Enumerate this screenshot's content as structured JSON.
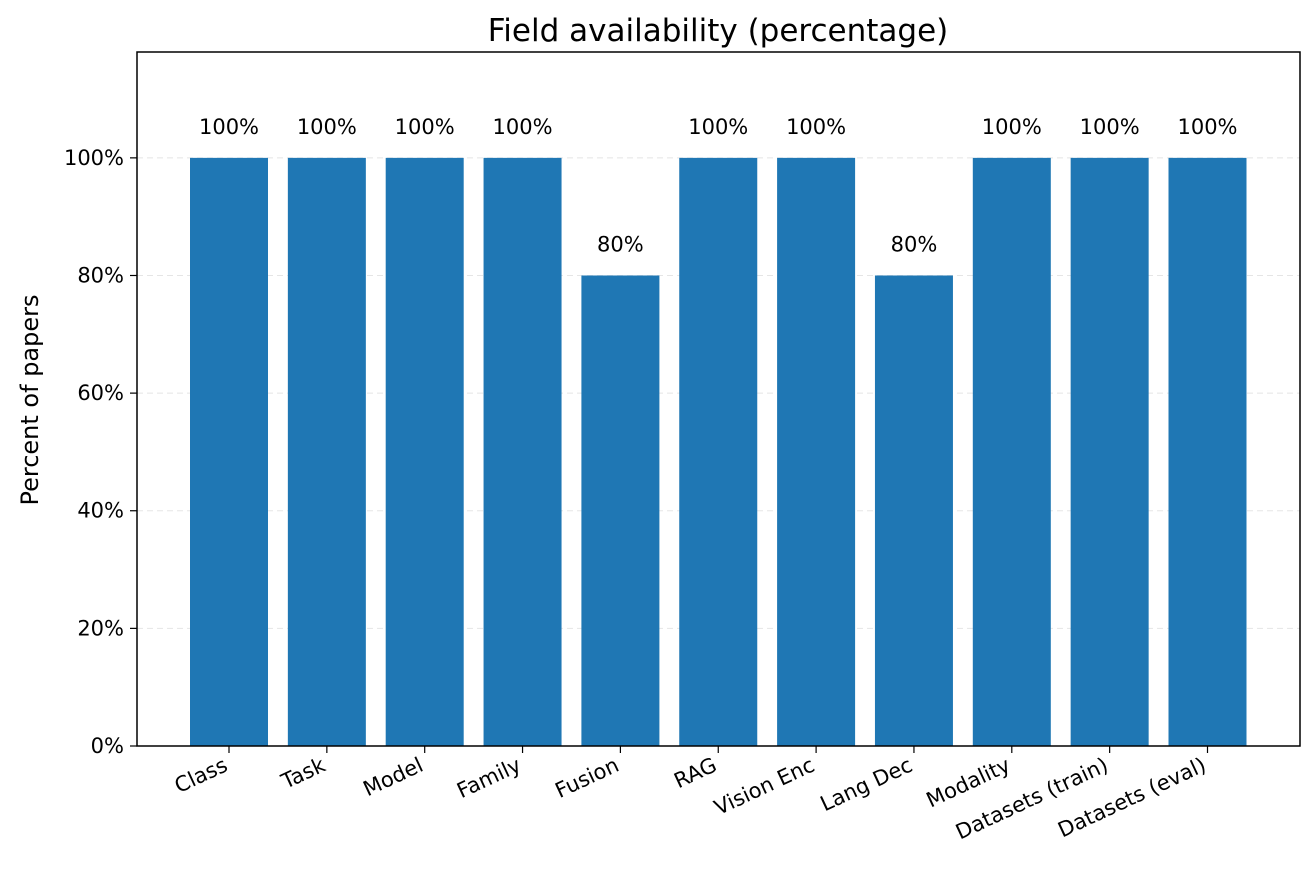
{
  "chart_data": {
    "type": "bar",
    "title": "Field availability (percentage)",
    "xlabel": "",
    "ylabel": "Percent of papers",
    "categories": [
      "Class",
      "Task",
      "Model",
      "Family",
      "Fusion",
      "RAG",
      "Vision Enc",
      "Lang Dec",
      "Modality",
      "Datasets (train)",
      "Datasets (eval)"
    ],
    "values": [
      100,
      100,
      100,
      100,
      80,
      100,
      100,
      80,
      100,
      100,
      100
    ],
    "bar_labels": [
      "100%",
      "100%",
      "100%",
      "100%",
      "80%",
      "100%",
      "100%",
      "80%",
      "100%",
      "100%",
      "100%"
    ],
    "ylim": [
      0,
      118
    ],
    "yticks": [
      0,
      20,
      40,
      60,
      80,
      100
    ],
    "ytick_labels": [
      "0%",
      "20%",
      "40%",
      "60%",
      "80%",
      "100%"
    ],
    "grid": "y-dashed",
    "bar_color": "#1f77b4"
  }
}
